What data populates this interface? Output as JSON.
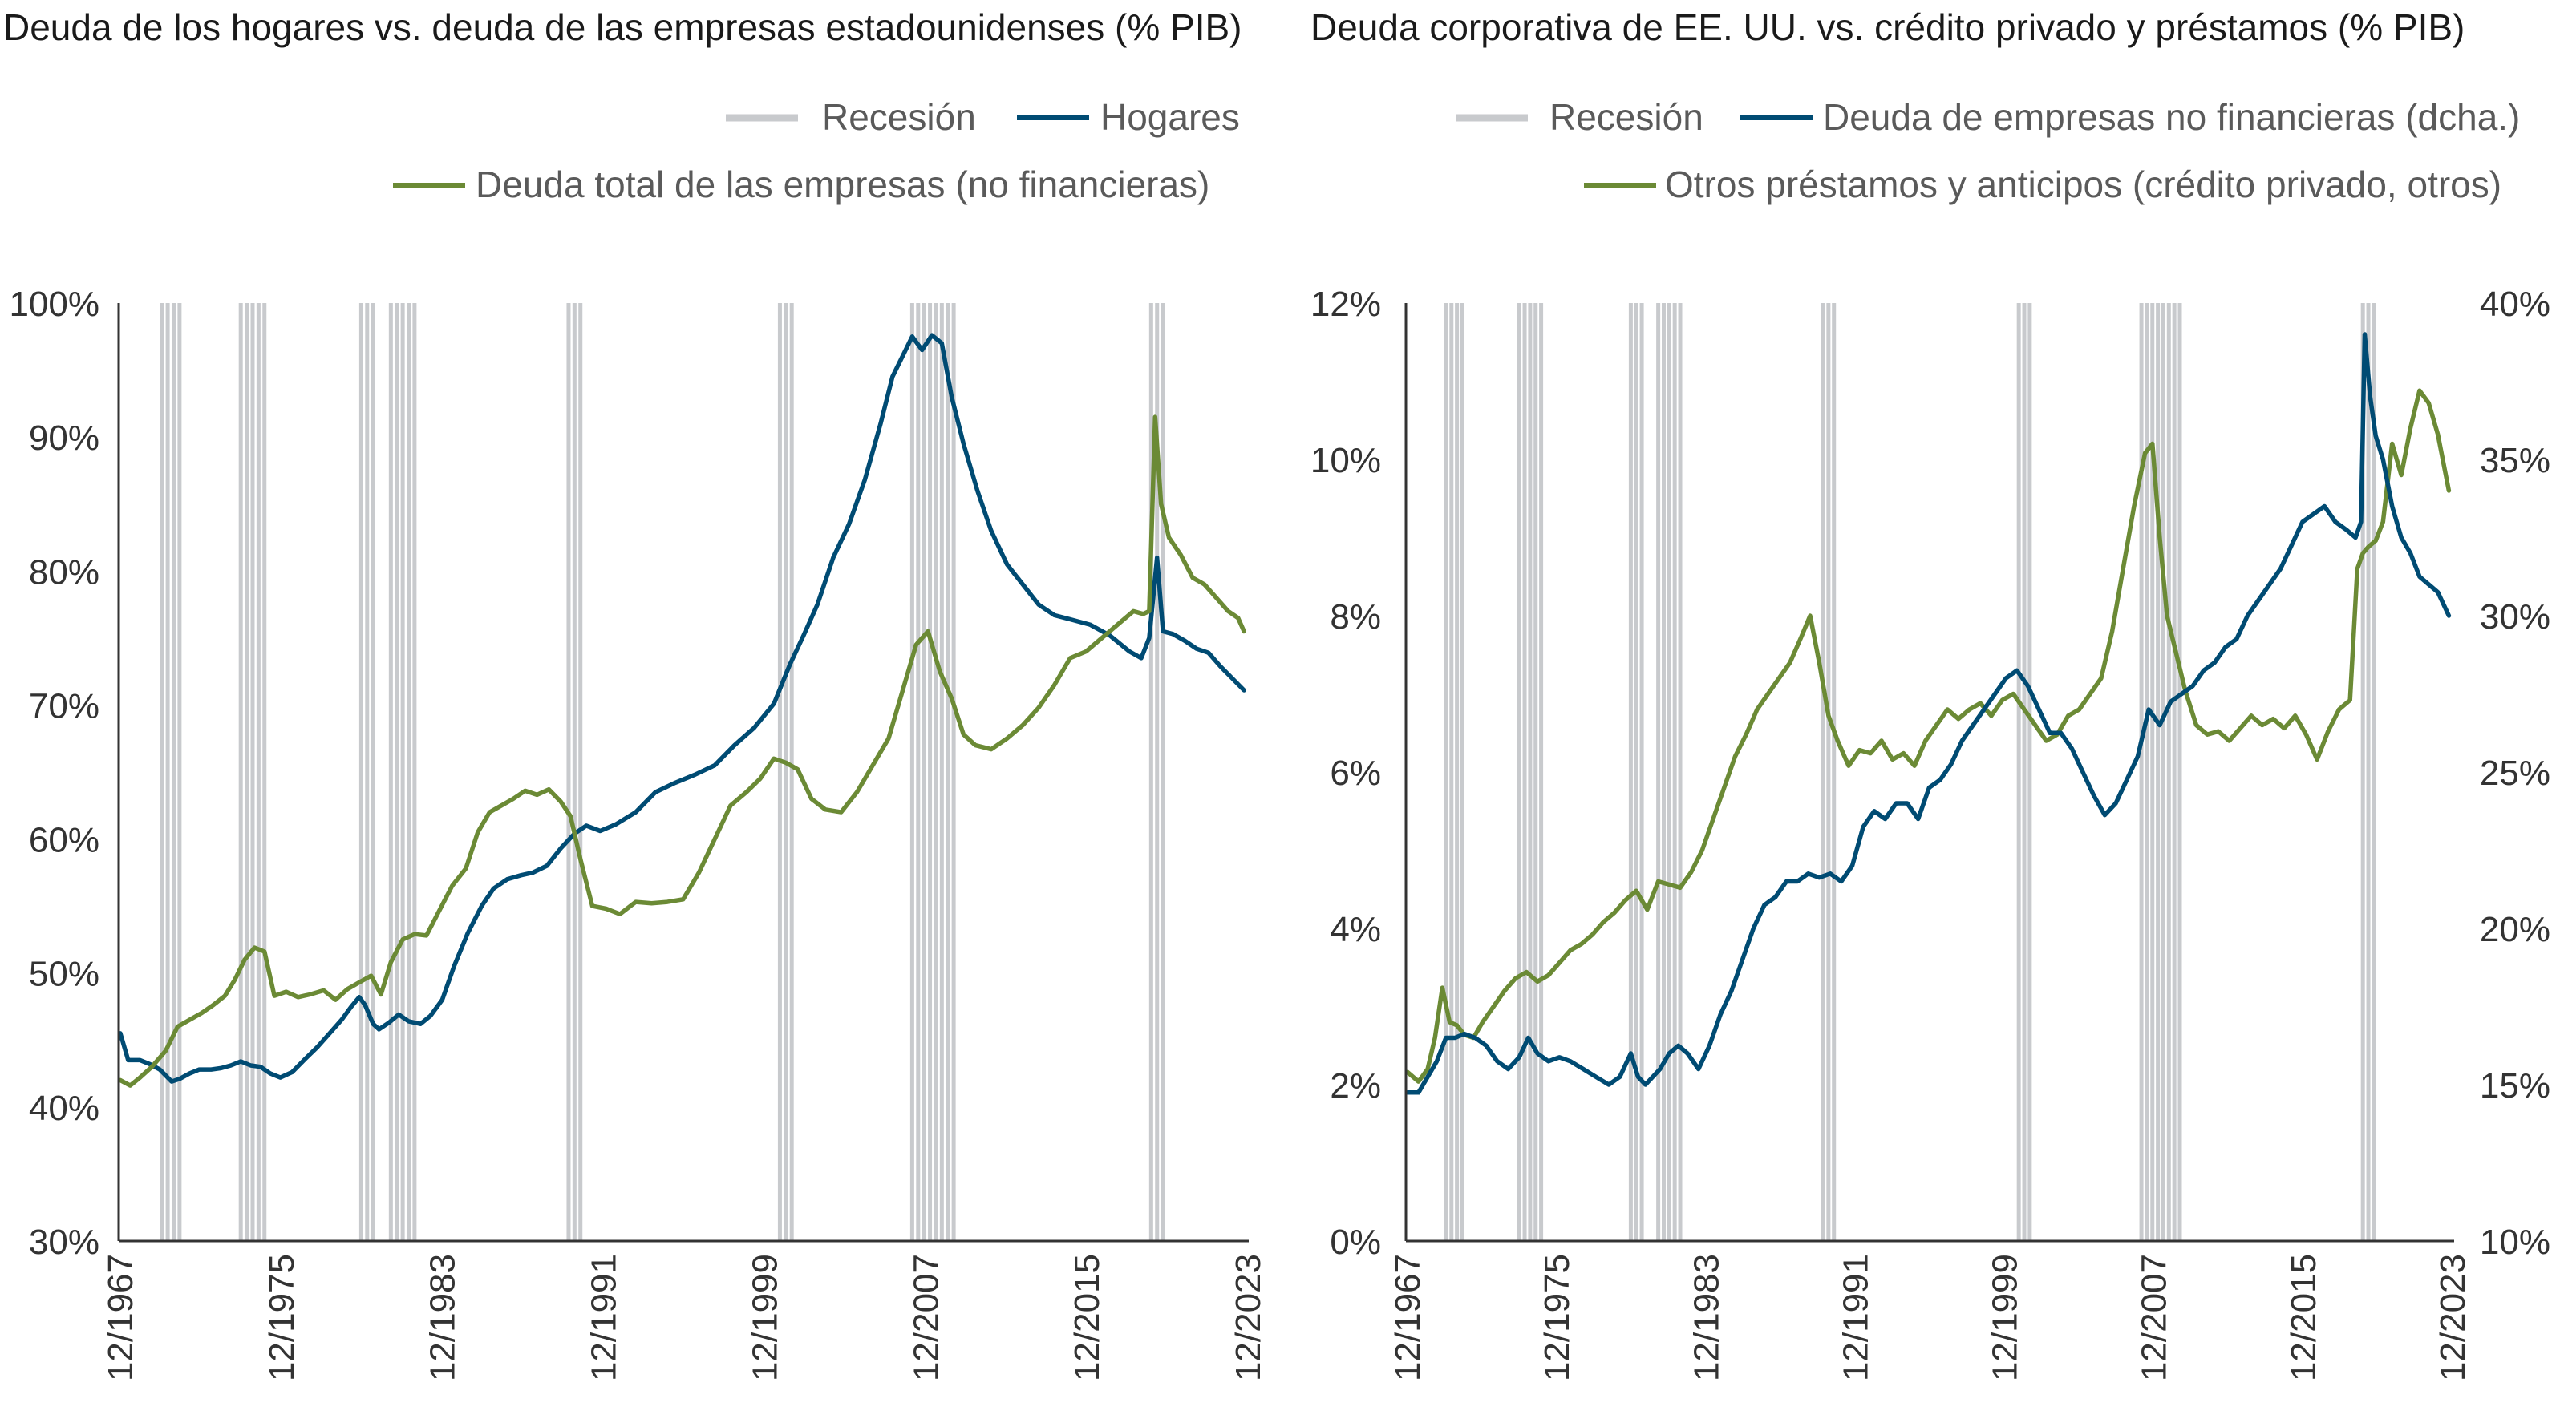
{
  "colors": {
    "recession": "#c8cacd",
    "blue": "#004b73",
    "green": "#6b8a35",
    "axis": "#333333",
    "text": "#333333",
    "title": "#1a1a1a"
  },
  "chart_data": [
    {
      "type": "line",
      "title": "Deuda de los hogares vs. deuda de las empresas estadounidenses (% PIB)",
      "legend": {
        "recession": "Recesión",
        "series1": "Hogares",
        "series2": "Deuda total de las empresas (no financieras)"
      },
      "x_ticks": [
        "12/1967",
        "12/1975",
        "12/1983",
        "12/1991",
        "12/1999",
        "12/2007",
        "12/2015",
        "12/2023"
      ],
      "x_range": [
        1967.9,
        2025.0
      ],
      "y_ticks": [
        "100%",
        "90%",
        "80%",
        "70%",
        "60%",
        "50%",
        "40%",
        "30%"
      ],
      "y_range": [
        30,
        100
      ],
      "recession_bars": [
        1970.0,
        1970.3,
        1970.6,
        1970.9,
        1974.0,
        1974.3,
        1974.6,
        1974.9,
        1975.2,
        1980.1,
        1980.4,
        1980.7,
        1981.6,
        1981.9,
        1982.2,
        1982.5,
        1982.8,
        1990.6,
        1990.9,
        1991.2,
        2001.3,
        2001.6,
        2001.9,
        2008.0,
        2008.3,
        2008.6,
        2008.9,
        2009.2,
        2009.5,
        2009.8,
        2010.1,
        2020.1,
        2020.4,
        2020.7
      ],
      "series": [
        {
          "name": "Hogares",
          "color_key": "blue",
          "x": [
            1967.9,
            1968.3,
            1968.9,
            1969.4,
            1969.9,
            1970.5,
            1970.9,
            1971.4,
            1971.9,
            1972.5,
            1973.0,
            1973.5,
            1974.0,
            1974.5,
            1975.0,
            1975.5,
            1976.0,
            1976.6,
            1977.2,
            1977.9,
            1978.5,
            1979.1,
            1979.6,
            1980.0,
            1980.3,
            1980.7,
            1981.0,
            1981.5,
            1982.0,
            1982.5,
            1983.1,
            1983.6,
            1984.2,
            1984.8,
            1985.5,
            1986.2,
            1986.8,
            1987.5,
            1988.2,
            1988.8,
            1989.5,
            1990.2,
            1990.9,
            1991.5,
            1992.2,
            1993.0,
            1994.0,
            1995.0,
            1996.0,
            1997.0,
            1998.0,
            1999.0,
            2000.0,
            2001.0,
            2001.8,
            2002.5,
            2003.2,
            2004.0,
            2004.8,
            2005.6,
            2006.4,
            2007.0,
            2007.6,
            2008.0,
            2008.5,
            2009.0,
            2009.5,
            2010.0,
            2010.6,
            2011.3,
            2012.0,
            2012.8,
            2013.6,
            2014.4,
            2015.2,
            2016.0,
            2017.0,
            2018.0,
            2019.0,
            2019.6,
            2020.0,
            2020.4,
            2020.7,
            2021.2,
            2021.8,
            2022.4,
            2023.0,
            2023.6,
            2024.2,
            2024.8
          ],
          "values": [
            45.5,
            43.5,
            43.5,
            43.2,
            42.8,
            41.9,
            42.1,
            42.5,
            42.8,
            42.8,
            42.9,
            43.1,
            43.4,
            43.1,
            43.0,
            42.5,
            42.2,
            42.6,
            43.5,
            44.5,
            45.5,
            46.5,
            47.5,
            48.2,
            47.6,
            46.2,
            45.8,
            46.3,
            46.9,
            46.4,
            46.2,
            46.8,
            48.0,
            50.5,
            53.0,
            55.0,
            56.3,
            57.0,
            57.3,
            57.5,
            58.0,
            59.3,
            60.4,
            61.0,
            60.6,
            61.1,
            62.0,
            63.5,
            64.2,
            64.8,
            65.5,
            67.0,
            68.3,
            70.1,
            73.0,
            75.2,
            77.5,
            81.0,
            83.5,
            86.8,
            91.0,
            94.5,
            96.3,
            97.5,
            96.5,
            97.6,
            97.0,
            93.0,
            89.5,
            86.0,
            83.0,
            80.5,
            79.0,
            77.5,
            76.7,
            76.4,
            76.0,
            75.2,
            74.0,
            73.5,
            75.0,
            81.0,
            75.5,
            75.3,
            74.8,
            74.2,
            73.9,
            72.9,
            72.0,
            71.1
          ]
        },
        {
          "name": "Deuda total de las empresas (no financieras)",
          "color_key": "green",
          "x": [
            1967.9,
            1968.4,
            1968.9,
            1969.5,
            1970.2,
            1970.8,
            1971.4,
            1972.0,
            1972.6,
            1973.2,
            1973.7,
            1974.2,
            1974.7,
            1975.2,
            1975.7,
            1976.3,
            1976.9,
            1977.5,
            1978.2,
            1978.8,
            1979.4,
            1980.0,
            1980.6,
            1981.1,
            1981.6,
            1982.2,
            1982.8,
            1983.4,
            1984.0,
            1984.7,
            1985.4,
            1986.0,
            1986.6,
            1987.2,
            1987.8,
            1988.4,
            1989.0,
            1989.6,
            1990.2,
            1990.7,
            1991.2,
            1991.8,
            1992.5,
            1993.2,
            1994.0,
            1994.8,
            1995.6,
            1996.4,
            1997.2,
            1998.0,
            1998.8,
            1999.6,
            2000.3,
            2001.0,
            2001.6,
            2002.2,
            2002.9,
            2003.6,
            2004.4,
            2005.2,
            2006.0,
            2006.8,
            2007.5,
            2008.2,
            2008.8,
            2009.4,
            2010.0,
            2010.6,
            2011.2,
            2012.0,
            2012.8,
            2013.6,
            2014.4,
            2015.2,
            2016.0,
            2016.8,
            2017.6,
            2018.4,
            2019.2,
            2019.7,
            2020.0,
            2020.3,
            2020.6,
            2021.0,
            2021.6,
            2022.2,
            2022.8,
            2023.4,
            2024.0,
            2024.5,
            2024.8
          ],
          "values": [
            42.0,
            41.6,
            42.2,
            43.0,
            44.2,
            46.0,
            46.5,
            47.0,
            47.6,
            48.3,
            49.5,
            51.0,
            51.9,
            51.6,
            48.3,
            48.6,
            48.2,
            48.4,
            48.7,
            48.0,
            48.8,
            49.3,
            49.8,
            48.4,
            50.8,
            52.5,
            52.9,
            52.8,
            54.5,
            56.5,
            57.8,
            60.5,
            62.0,
            62.5,
            63.0,
            63.6,
            63.3,
            63.7,
            62.8,
            61.7,
            58.5,
            55.0,
            54.8,
            54.4,
            55.3,
            55.2,
            55.3,
            55.5,
            57.5,
            60.0,
            62.5,
            63.5,
            64.5,
            66.0,
            65.7,
            65.2,
            63.0,
            62.2,
            62.0,
            63.5,
            65.5,
            67.5,
            71.0,
            74.5,
            75.5,
            72.5,
            70.5,
            67.8,
            67.0,
            66.7,
            67.5,
            68.5,
            69.8,
            71.5,
            73.5,
            74.0,
            75.0,
            76.0,
            77.0,
            76.8,
            77.0,
            91.5,
            85.0,
            82.5,
            81.2,
            79.5,
            79.0,
            78.0,
            77.0,
            76.5,
            75.5
          ]
        }
      ]
    },
    {
      "type": "line",
      "title": "Deuda corporativa de EE. UU. vs. crédito privado y préstamos (% PIB)",
      "legend": {
        "recession": "Recesión",
        "series1": "Deuda de empresas no financieras (dcha.)",
        "series2": "Otros préstamos y anticipos (crédito privado, otros)"
      },
      "x_ticks": [
        "12/1967",
        "12/1975",
        "12/1983",
        "12/1991",
        "12/1999",
        "12/2007",
        "12/2015",
        "12/2023"
      ],
      "x_range": [
        1967.9,
        2025.0
      ],
      "y_left_ticks": [
        "12%",
        "10%",
        "8%",
        "6%",
        "4%",
        "2%",
        "0%"
      ],
      "y_left_range": [
        0,
        12
      ],
      "y_right_ticks": [
        "40%",
        "35%",
        "30%",
        "25%",
        "20%",
        "15%",
        "10%"
      ],
      "y_right_range": [
        10,
        40
      ],
      "recession_bars": [
        1970.0,
        1970.3,
        1970.6,
        1970.9,
        1974.0,
        1974.3,
        1974.6,
        1974.9,
        1975.2,
        1980.1,
        1980.4,
        1980.7,
        1981.6,
        1981.9,
        1982.2,
        1982.5,
        1982.8,
        1990.6,
        1990.9,
        1991.2,
        2001.3,
        2001.6,
        2001.9,
        2008.0,
        2008.3,
        2008.6,
        2008.9,
        2009.2,
        2009.5,
        2009.8,
        2010.1,
        2020.1,
        2020.4,
        2020.7
      ],
      "series": [
        {
          "name": "Deuda de empresas no financieras (dcha.)",
          "color_key": "blue",
          "axis": "left",
          "x": [
            1967.9,
            1968.5,
            1969.0,
            1969.5,
            1970.0,
            1970.5,
            1971.0,
            1971.6,
            1972.2,
            1972.8,
            1973.4,
            1974.0,
            1974.5,
            1975.0,
            1975.6,
            1976.2,
            1976.8,
            1977.5,
            1978.2,
            1978.9,
            1979.5,
            1980.1,
            1980.5,
            1980.9,
            1981.3,
            1981.7,
            1982.2,
            1982.7,
            1983.2,
            1983.8,
            1984.4,
            1985.0,
            1985.6,
            1986.2,
            1986.8,
            1987.4,
            1988.0,
            1988.6,
            1989.2,
            1989.8,
            1990.4,
            1991.0,
            1991.6,
            1992.2,
            1992.8,
            1993.4,
            1994.0,
            1994.6,
            1995.2,
            1995.8,
            1996.4,
            1997.0,
            1997.6,
            1998.2,
            1998.8,
            1999.4,
            2000.0,
            2000.6,
            2001.2,
            2001.8,
            2002.4,
            2003.0,
            2003.6,
            2004.2,
            2004.8,
            2005.4,
            2006.0,
            2006.6,
            2007.2,
            2007.8,
            2008.4,
            2009.0,
            2009.6,
            2010.2,
            2010.8,
            2011.4,
            2012.0,
            2012.6,
            2013.2,
            2013.8,
            2014.4,
            2015.0,
            2015.6,
            2016.2,
            2016.8,
            2017.4,
            2018.0,
            2018.6,
            2019.2,
            2019.7,
            2020.0,
            2020.2,
            2020.5,
            2020.8,
            2021.2,
            2021.7,
            2022.2,
            2022.7,
            2023.2,
            2023.7,
            2024.2,
            2024.8
          ],
          "values": [
            1.9,
            1.9,
            2.1,
            2.3,
            2.6,
            2.6,
            2.65,
            2.6,
            2.5,
            2.3,
            2.2,
            2.35,
            2.6,
            2.4,
            2.3,
            2.35,
            2.3,
            2.2,
            2.1,
            2.0,
            2.1,
            2.4,
            2.1,
            2.0,
            2.1,
            2.2,
            2.4,
            2.5,
            2.4,
            2.2,
            2.5,
            2.9,
            3.2,
            3.6,
            4.0,
            4.3,
            4.4,
            4.6,
            4.6,
            4.7,
            4.65,
            4.7,
            4.6,
            4.8,
            5.3,
            5.5,
            5.4,
            5.6,
            5.6,
            5.4,
            5.8,
            5.9,
            6.1,
            6.4,
            6.6,
            6.8,
            7.0,
            7.2,
            7.3,
            7.1,
            6.8,
            6.5,
            6.5,
            6.3,
            6.0,
            5.7,
            5.45,
            5.6,
            5.9,
            6.2,
            6.8,
            6.6,
            6.9,
            7.0,
            7.1,
            7.3,
            7.4,
            7.6,
            7.7,
            8.0,
            8.2,
            8.4,
            8.6,
            8.9,
            9.2,
            9.3,
            9.4,
            9.2,
            9.1,
            9.0,
            9.2,
            11.6,
            10.8,
            10.3,
            10.0,
            9.4,
            9.0,
            8.8,
            8.5,
            8.4,
            8.3,
            8.0
          ]
        },
        {
          "name": "Otros préstamos y anticipos (crédito privado, otros)",
          "color_key": "green",
          "axis": "right",
          "x": [
            1967.9,
            1968.5,
            1969.0,
            1969.4,
            1969.8,
            1970.2,
            1970.6,
            1971.0,
            1971.5,
            1972.0,
            1972.6,
            1973.2,
            1973.8,
            1974.4,
            1975.0,
            1975.6,
            1976.2,
            1976.8,
            1977.4,
            1978.0,
            1978.6,
            1979.2,
            1979.8,
            1980.4,
            1981.0,
            1981.6,
            1982.2,
            1982.8,
            1983.4,
            1984.0,
            1984.6,
            1985.2,
            1985.8,
            1986.4,
            1987.0,
            1987.6,
            1988.2,
            1988.8,
            1989.4,
            1989.9,
            1990.4,
            1990.9,
            1991.4,
            1992.0,
            1992.6,
            1993.2,
            1993.8,
            1994.4,
            1995.0,
            1995.6,
            1996.2,
            1996.8,
            1997.4,
            1998.0,
            1998.6,
            1999.2,
            1999.8,
            2000.4,
            2001.0,
            2001.6,
            2002.2,
            2002.8,
            2003.4,
            2004.0,
            2004.6,
            2005.2,
            2005.8,
            2006.4,
            2007.0,
            2007.6,
            2008.2,
            2008.6,
            2009.0,
            2009.4,
            2009.9,
            2010.4,
            2011.0,
            2011.6,
            2012.2,
            2012.8,
            2013.4,
            2014.0,
            2014.6,
            2015.2,
            2015.8,
            2016.4,
            2017.0,
            2017.6,
            2018.2,
            2018.8,
            2019.4,
            2019.8,
            2020.1,
            2020.4,
            2020.8,
            2021.2,
            2021.7,
            2022.2,
            2022.7,
            2023.2,
            2023.7,
            2024.2,
            2024.8
          ],
          "values": [
            15.4,
            15.1,
            15.5,
            16.5,
            18.1,
            17.0,
            16.9,
            16.6,
            16.5,
            17.0,
            17.5,
            18.0,
            18.4,
            18.6,
            18.3,
            18.5,
            18.9,
            19.3,
            19.5,
            19.8,
            20.2,
            20.5,
            20.9,
            21.2,
            20.6,
            21.5,
            21.4,
            21.3,
            21.8,
            22.5,
            23.5,
            24.5,
            25.5,
            26.2,
            27.0,
            27.5,
            28.0,
            28.5,
            29.3,
            30.0,
            28.5,
            26.8,
            26.0,
            25.2,
            25.7,
            25.6,
            26.0,
            25.4,
            25.6,
            25.2,
            26.0,
            26.5,
            27.0,
            26.7,
            27.0,
            27.2,
            26.8,
            27.3,
            27.5,
            27.0,
            26.5,
            26.0,
            26.2,
            26.8,
            27.0,
            27.5,
            28.0,
            29.5,
            31.5,
            33.5,
            35.2,
            35.5,
            32.5,
            30.0,
            28.8,
            27.6,
            26.5,
            26.2,
            26.3,
            26.0,
            26.4,
            26.8,
            26.5,
            26.7,
            26.4,
            26.8,
            26.2,
            25.4,
            26.3,
            27.0,
            27.3,
            31.5,
            32.0,
            32.2,
            32.4,
            33.0,
            35.5,
            34.5,
            36.0,
            37.2,
            36.8,
            35.8,
            34.0
          ]
        }
      ]
    }
  ]
}
